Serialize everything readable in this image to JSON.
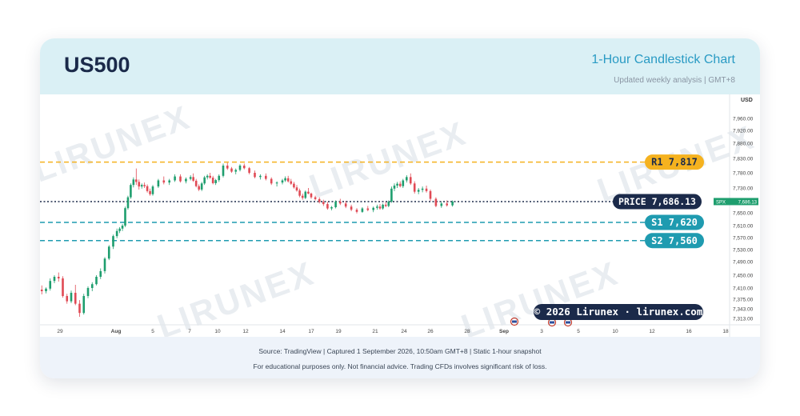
{
  "header": {
    "symbol": "US500",
    "subtitle": "1-Hour Candlestick Chart",
    "updated": "Updated weekly analysis | GMT+8"
  },
  "footer": {
    "source": "Source: TradingView | Captured 1 September 2026, 10:50am GMT+8 | Static 1-hour snapshot",
    "disclaimer": "For educational purposes only. Not financial advice. Trading CFDs involves significant risk of loss."
  },
  "watermark": "LIRUNEX",
  "copyright": "© 2026 Lirunex · lirunex.com",
  "colors": {
    "up": "#1e9e6e",
    "down": "#e04a55",
    "resistance": "#f5b21f",
    "support": "#1f9bb0",
    "price": "#1b2a4a"
  },
  "chart_data": {
    "type": "candlestick",
    "currency_label": "USD",
    "ylim": [
      7300,
      8000
    ],
    "y_ticks": [
      {
        "label": "7,960.00",
        "value": 7960
      },
      {
        "label": "7,920.00",
        "value": 7920
      },
      {
        "label": "7,880.00",
        "value": 7880
      },
      {
        "label": "7,830.00",
        "value": 7830
      },
      {
        "label": "7,780.00",
        "value": 7780
      },
      {
        "label": "7,730.00",
        "value": 7730
      },
      {
        "label": "7,650.00",
        "value": 7650
      },
      {
        "label": "7,610.00",
        "value": 7610
      },
      {
        "label": "7,570.00",
        "value": 7570
      },
      {
        "label": "7,530.00",
        "value": 7530
      },
      {
        "label": "7,490.00",
        "value": 7490
      },
      {
        "label": "7,450.00",
        "value": 7450
      },
      {
        "label": "7,410.00",
        "value": 7410
      },
      {
        "label": "7,375.00",
        "value": 7375
      },
      {
        "label": "7,343.00",
        "value": 7343
      },
      {
        "label": "7,313.00",
        "value": 7313
      }
    ],
    "x_ticks": [
      {
        "label": "29",
        "day": -3
      },
      {
        "label": "Aug",
        "day": 1
      },
      {
        "label": "5",
        "day": 5
      },
      {
        "label": "7",
        "day": 7
      },
      {
        "label": "10",
        "day": 10
      },
      {
        "label": "12",
        "day": 12
      },
      {
        "label": "14",
        "day": 14
      },
      {
        "label": "17",
        "day": 17
      },
      {
        "label": "19",
        "day": 19
      },
      {
        "label": "21",
        "day": 21
      },
      {
        "label": "24",
        "day": 24
      },
      {
        "label": "26",
        "day": 26
      },
      {
        "label": "28",
        "day": 28
      },
      {
        "label": "Sep",
        "day": 32
      },
      {
        "label": "3",
        "day": 34
      },
      {
        "label": "5",
        "day": 36
      },
      {
        "label": "10",
        "day": 38
      },
      {
        "label": "12",
        "day": 40
      },
      {
        "label": "16",
        "day": 42
      },
      {
        "label": "18",
        "day": 44
      }
    ],
    "levels": [
      {
        "name": "R1",
        "value": 7817,
        "label": "7,817",
        "kind": "resistance"
      },
      {
        "name": "PRICE",
        "value": 7686.13,
        "label": "7,686.13",
        "kind": "price"
      },
      {
        "name": "S1",
        "value": 7620,
        "label": "7,620",
        "kind": "support"
      },
      {
        "name": "S2",
        "value": 7560,
        "label": "7,560",
        "kind": "support"
      }
    ],
    "axis_price_tag": {
      "symbol": "SPX",
      "value": "7,686.13"
    },
    "candles": [
      [
        -4.3,
        7405,
        7418,
        7390,
        7400
      ],
      [
        -4.0,
        7400,
        7412,
        7393,
        7408
      ],
      [
        -3.7,
        7408,
        7440,
        7402,
        7432
      ],
      [
        -3.4,
        7432,
        7450,
        7425,
        7445
      ],
      [
        -3.1,
        7445,
        7458,
        7430,
        7440
      ],
      [
        -2.8,
        7440,
        7447,
        7380,
        7385
      ],
      [
        -2.5,
        7385,
        7392,
        7360,
        7368
      ],
      [
        -2.2,
        7368,
        7402,
        7362,
        7395
      ],
      [
        -1.9,
        7395,
        7420,
        7355,
        7360
      ],
      [
        -1.6,
        7360,
        7372,
        7318,
        7330
      ],
      [
        -1.3,
        7330,
        7392,
        7325,
        7385
      ],
      [
        -1.0,
        7385,
        7415,
        7378,
        7410
      ],
      [
        -0.7,
        7410,
        7428,
        7400,
        7422
      ],
      [
        -0.4,
        7422,
        7450,
        7418,
        7445
      ],
      [
        -0.1,
        7445,
        7470,
        7438,
        7462
      ],
      [
        0.2,
        7462,
        7505,
        7455,
        7500
      ],
      [
        0.5,
        7500,
        7545,
        7495,
        7540
      ],
      [
        0.8,
        7540,
        7580,
        7532,
        7575
      ],
      [
        1.1,
        7575,
        7600,
        7568,
        7592
      ],
      [
        1.4,
        7592,
        7605,
        7585,
        7600
      ],
      [
        1.7,
        7600,
        7615,
        7592,
        7610
      ],
      [
        2.0,
        7610,
        7670,
        7605,
        7665
      ],
      [
        2.3,
        7665,
        7705,
        7660,
        7700
      ],
      [
        2.6,
        7700,
        7745,
        7695,
        7740
      ],
      [
        2.9,
        7740,
        7765,
        7732,
        7758
      ],
      [
        3.2,
        7758,
        7795,
        7740,
        7750
      ],
      [
        3.5,
        7750,
        7758,
        7725,
        7735
      ],
      [
        3.8,
        7735,
        7745,
        7728,
        7740
      ],
      [
        4.1,
        7740,
        7748,
        7730,
        7736
      ],
      [
        4.4,
        7736,
        7742,
        7715,
        7720
      ],
      [
        4.7,
        7720,
        7728,
        7705,
        7710
      ],
      [
        5.0,
        7710,
        7740,
        7705,
        7735
      ],
      [
        5.3,
        7735,
        7760,
        7730,
        7755
      ],
      [
        5.6,
        7755,
        7768,
        7742,
        7748
      ],
      [
        5.9,
        7748,
        7760,
        7740,
        7755
      ],
      [
        6.2,
        7755,
        7775,
        7750,
        7768
      ],
      [
        6.5,
        7768,
        7775,
        7748,
        7752
      ],
      [
        6.8,
        7752,
        7765,
        7745,
        7760
      ],
      [
        7.1,
        7760,
        7772,
        7755,
        7766
      ],
      [
        7.4,
        7766,
        7778,
        7750,
        7754
      ],
      [
        7.7,
        7754,
        7760,
        7732,
        7736
      ],
      [
        8.0,
        7736,
        7742,
        7720,
        7725
      ],
      [
        8.3,
        7725,
        7750,
        7720,
        7745
      ],
      [
        8.6,
        7745,
        7770,
        7740,
        7765
      ],
      [
        8.9,
        7765,
        7775,
        7758,
        7770
      ],
      [
        9.2,
        7770,
        7780,
        7760,
        7764
      ],
      [
        9.5,
        7764,
        7770,
        7742,
        7746
      ],
      [
        9.8,
        7746,
        7760,
        7740,
        7756
      ],
      [
        10.1,
        7756,
        7775,
        7750,
        7770
      ],
      [
        10.4,
        7770,
        7812,
        7765,
        7805
      ],
      [
        10.7,
        7805,
        7815,
        7790,
        7795
      ],
      [
        11.0,
        7795,
        7800,
        7780,
        7784
      ],
      [
        11.3,
        7784,
        7795,
        7775,
        7790
      ],
      [
        11.6,
        7790,
        7810,
        7785,
        7805
      ],
      [
        11.9,
        7805,
        7812,
        7792,
        7796
      ],
      [
        12.2,
        7796,
        7800,
        7775,
        7780
      ],
      [
        12.5,
        7780,
        7788,
        7762,
        7766
      ],
      [
        12.8,
        7766,
        7775,
        7758,
        7770
      ],
      [
        13.1,
        7770,
        7778,
        7755,
        7760
      ],
      [
        13.4,
        7760,
        7765,
        7740,
        7745
      ],
      [
        13.7,
        7745,
        7752,
        7735,
        7748
      ],
      [
        14.0,
        7748,
        7760,
        7742,
        7755
      ],
      [
        14.3,
        7755,
        7768,
        7750,
        7762
      ],
      [
        14.6,
        7762,
        7770,
        7748,
        7752
      ],
      [
        14.9,
        7752,
        7760,
        7740,
        7744
      ],
      [
        15.2,
        7744,
        7750,
        7728,
        7732
      ],
      [
        15.5,
        7732,
        7740,
        7718,
        7722
      ],
      [
        15.8,
        7722,
        7728,
        7700,
        7705
      ],
      [
        16.1,
        7705,
        7712,
        7692,
        7698
      ],
      [
        16.4,
        7698,
        7722,
        7694,
        7718
      ],
      [
        16.7,
        7718,
        7730,
        7710,
        7712
      ],
      [
        17.0,
        7712,
        7715,
        7695,
        7700
      ],
      [
        17.3,
        7700,
        7705,
        7690,
        7694
      ],
      [
        17.6,
        7694,
        7700,
        7680,
        7685
      ],
      [
        17.9,
        7685,
        7692,
        7672,
        7678
      ],
      [
        18.2,
        7678,
        7685,
        7660,
        7664
      ],
      [
        18.5,
        7664,
        7672,
        7658,
        7668
      ],
      [
        18.8,
        7668,
        7690,
        7664,
        7686
      ],
      [
        19.1,
        7686,
        7695,
        7675,
        7680
      ],
      [
        19.4,
        7680,
        7688,
        7665,
        7670
      ],
      [
        19.7,
        7670,
        7676,
        7655,
        7660
      ],
      [
        20.0,
        7660,
        7665,
        7648,
        7653
      ],
      [
        20.3,
        7653,
        7668,
        7650,
        7664
      ],
      [
        20.6,
        7664,
        7672,
        7655,
        7659
      ],
      [
        20.9,
        7659,
        7670,
        7652,
        7666
      ],
      [
        21.2,
        7666,
        7676,
        7660,
        7670
      ],
      [
        21.5,
        7670,
        7678,
        7660,
        7664
      ],
      [
        21.8,
        7664,
        7680,
        7660,
        7676
      ],
      [
        22.1,
        7676,
        7685,
        7668,
        7672
      ],
      [
        22.4,
        7672,
        7690,
        7668,
        7686
      ],
      [
        22.7,
        7686,
        7735,
        7682,
        7728
      ],
      [
        23.0,
        7728,
        7745,
        7720,
        7738
      ],
      [
        23.3,
        7738,
        7750,
        7730,
        7744
      ],
      [
        23.6,
        7744,
        7752,
        7732,
        7736
      ],
      [
        23.9,
        7736,
        7760,
        7730,
        7755
      ],
      [
        24.2,
        7755,
        7772,
        7748,
        7766
      ],
      [
        24.5,
        7766,
        7778,
        7740,
        7745
      ],
      [
        24.8,
        7745,
        7752,
        7712,
        7718
      ],
      [
        25.1,
        7718,
        7730,
        7710,
        7724
      ],
      [
        25.4,
        7724,
        7735,
        7716,
        7728
      ],
      [
        25.7,
        7728,
        7738,
        7715,
        7720
      ],
      [
        26.0,
        7720,
        7725,
        7688,
        7695
      ],
      [
        26.3,
        7695,
        7700,
        7668,
        7672
      ],
      [
        26.6,
        7672,
        7685,
        7666,
        7680
      ],
      [
        26.9,
        7680,
        7690,
        7670,
        7674
      ],
      [
        27.2,
        7674,
        7690,
        7670,
        7686
      ]
    ]
  }
}
